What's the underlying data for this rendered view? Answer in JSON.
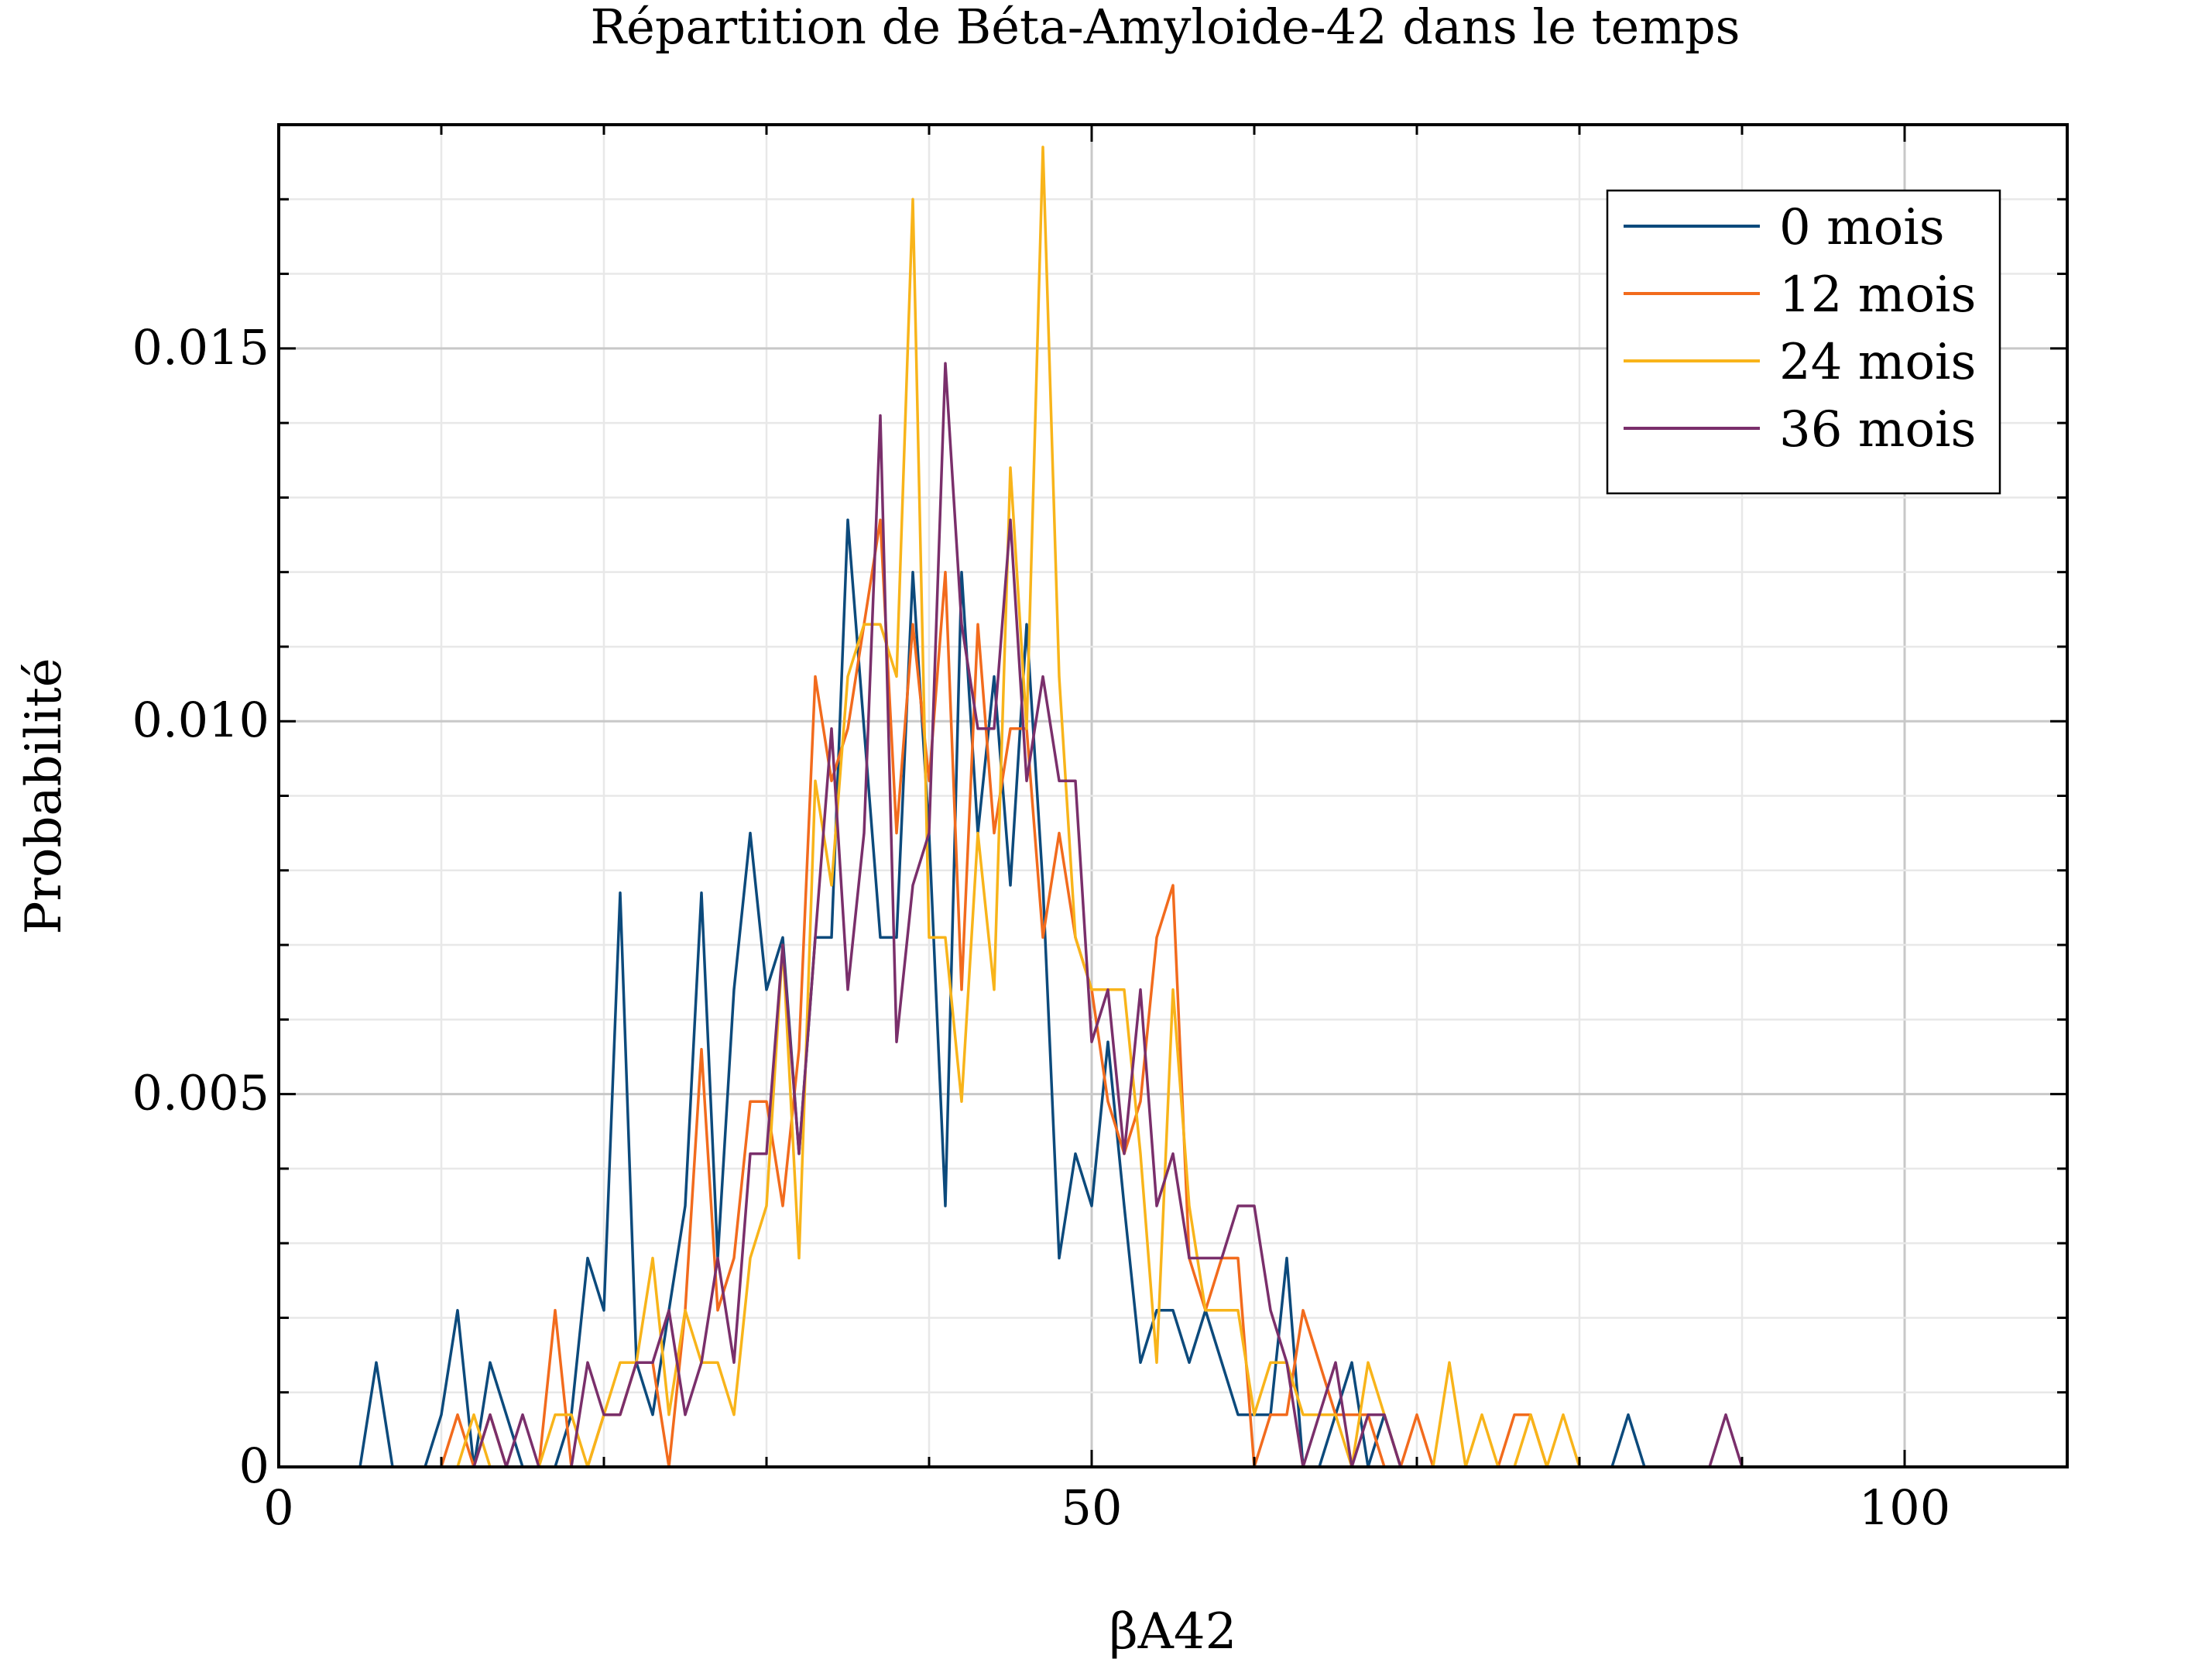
{
  "chart_data": {
    "type": "line",
    "title": "Répartition de Béta-Amyloide-42 dans le temps",
    "xlabel": "βA42",
    "ylabel": "Probabilité",
    "xlim": [
      0,
      110
    ],
    "ylim": [
      0,
      0.018
    ],
    "x_ticks": [
      0,
      50,
      100
    ],
    "x_tick_labels": [
      "0",
      "50",
      "100"
    ],
    "y_ticks": [
      0,
      0.005,
      0.01,
      0.015
    ],
    "y_tick_labels": [
      "0",
      "0.005",
      "0.010",
      "0.015"
    ],
    "grid": true,
    "legend": "top-right",
    "x": [
      1,
      2,
      3,
      4,
      5,
      6,
      7,
      8,
      9,
      10,
      11,
      12,
      13,
      14,
      15,
      16,
      17,
      18,
      19,
      20,
      21,
      22,
      23,
      24,
      25,
      26,
      27,
      28,
      29,
      30,
      31,
      32,
      33,
      34,
      35,
      36,
      37,
      38,
      39,
      40,
      41,
      42,
      43,
      44,
      45,
      46,
      47,
      48,
      49,
      50,
      51,
      52,
      53,
      54,
      55,
      56,
      57,
      58,
      59,
      60,
      61,
      62,
      63,
      64,
      65,
      66,
      67,
      68,
      69,
      70,
      71,
      72,
      73,
      74,
      75,
      76,
      77,
      78,
      79,
      80,
      81,
      82,
      83,
      84,
      85,
      86,
      87,
      88,
      89,
      90,
      91,
      92,
      93,
      94,
      95,
      96,
      97,
      98,
      99,
      100,
      101,
      102,
      103
    ],
    "series": [
      {
        "name": "0 mois",
        "color": "#0C4A7C",
        "values": [
          0,
          0,
          0,
          0,
          0,
          0.0014,
          0,
          0,
          0,
          0.0007,
          0.0021,
          0,
          0.0014,
          0.0007,
          0,
          0,
          0,
          0.0007,
          0.0028,
          0.0021,
          0.0077,
          0.0014,
          0.0007,
          0.0021,
          0.0035,
          0.0077,
          0.0028,
          0.0064,
          0.0085,
          0.0064,
          0.0071,
          0.0042,
          0.0071,
          0.0071,
          0.0127,
          0.0099,
          0.0071,
          0.0071,
          0.012,
          0.0085,
          0.0035,
          0.012,
          0.0085,
          0.0106,
          0.0078,
          0.0113,
          0.0078,
          0.0028,
          0.0042,
          0.0035,
          0.0057,
          0.0035,
          0.0014,
          0.0021,
          0.0021,
          0.0014,
          0.0021,
          0.0014,
          0.0007,
          0.0007,
          0.0007,
          0.0028,
          0,
          0,
          0.0007,
          0.0014,
          0,
          0.0007,
          0,
          0,
          0,
          0,
          0,
          0,
          0,
          0,
          0,
          0,
          0,
          0,
          0,
          0,
          0.0007,
          0,
          0,
          0,
          0,
          0,
          0,
          0,
          0,
          0,
          0,
          0,
          0,
          0,
          0,
          0,
          0,
          0,
          0,
          0,
          0
        ]
      },
      {
        "name": "12 mois",
        "color": "#F26B1D",
        "values": [
          0,
          0,
          0,
          0,
          0,
          0,
          0,
          0,
          0,
          0,
          0.0007,
          0,
          0.0007,
          0,
          0,
          0,
          0.0021,
          0,
          0,
          0.0007,
          0.0007,
          0.0014,
          0.0014,
          0,
          0.0021,
          0.0056,
          0.0021,
          0.0028,
          0.0049,
          0.0049,
          0.0035,
          0.0056,
          0.0106,
          0.0092,
          0.0099,
          0.0113,
          0.0127,
          0.0085,
          0.0113,
          0.0092,
          0.012,
          0.0064,
          0.0113,
          0.0085,
          0.0099,
          0.0099,
          0.0071,
          0.0085,
          0.0071,
          0.0064,
          0.0049,
          0.0042,
          0.0049,
          0.0071,
          0.0078,
          0.0028,
          0.0021,
          0.0028,
          0.0028,
          0,
          0.0007,
          0.0007,
          0.0021,
          0.0014,
          0.0007,
          0.0007,
          0.0007,
          0,
          0,
          0.0007,
          0,
          0,
          0,
          0,
          0,
          0.0007,
          0.0007,
          0,
          0,
          0,
          0,
          0,
          0,
          0,
          0,
          0,
          0,
          0,
          0,
          0,
          0,
          0,
          0,
          0,
          0,
          0,
          0,
          0,
          0,
          0,
          0,
          0,
          0
        ]
      },
      {
        "name": "24 mois",
        "color": "#F8B41A",
        "values": [
          0,
          0,
          0,
          0,
          0,
          0,
          0,
          0,
          0,
          0,
          0,
          0.0007,
          0,
          0,
          0,
          0,
          0.0007,
          0.0007,
          0,
          0.0007,
          0.0014,
          0.0014,
          0.0028,
          0.0007,
          0.0021,
          0.0014,
          0.0014,
          0.0007,
          0.0028,
          0.0035,
          0.007,
          0.0028,
          0.0092,
          0.0078,
          0.0106,
          0.0113,
          0.0113,
          0.0106,
          0.017,
          0.0071,
          0.0071,
          0.0049,
          0.0085,
          0.0064,
          0.0134,
          0.0099,
          0.0177,
          0.0106,
          0.0071,
          0.0064,
          0.0064,
          0.0064,
          0.0042,
          0.0014,
          0.0064,
          0.0035,
          0.0021,
          0.0021,
          0.0021,
          0.0007,
          0.0014,
          0.0014,
          0.0007,
          0.0007,
          0.0007,
          0,
          0.0014,
          0.0007,
          0,
          0,
          0,
          0.0014,
          0,
          0.0007,
          0,
          0,
          0.0007,
          0,
          0.0007,
          0,
          0,
          0,
          0,
          0,
          0,
          0,
          0,
          0,
          0,
          0,
          0,
          0,
          0,
          0,
          0,
          0,
          0,
          0,
          0,
          0,
          0,
          0,
          0
        ]
      },
      {
        "name": "36 mois",
        "color": "#7A2F6B",
        "values": [
          0,
          0,
          0,
          0,
          0,
          0,
          0,
          0,
          0,
          0,
          0,
          0,
          0.0007,
          0,
          0.0007,
          0,
          0,
          0,
          0.0014,
          0.0007,
          0.0007,
          0.0014,
          0.0014,
          0.0021,
          0.0007,
          0.0014,
          0.0028,
          0.0014,
          0.0042,
          0.0042,
          0.007,
          0.0042,
          0.0071,
          0.0099,
          0.0064,
          0.0085,
          0.0141,
          0.0057,
          0.0078,
          0.0085,
          0.0148,
          0.0113,
          0.0099,
          0.0099,
          0.0127,
          0.0092,
          0.0106,
          0.0092,
          0.0092,
          0.0057,
          0.0064,
          0.0042,
          0.0064,
          0.0035,
          0.0042,
          0.0028,
          0.0028,
          0.0028,
          0.0035,
          0.0035,
          0.0021,
          0.0014,
          0,
          0.0007,
          0.0014,
          0,
          0.0007,
          0.0007,
          0,
          0,
          0,
          0,
          0,
          0,
          0,
          0,
          0,
          0,
          0,
          0,
          0,
          0,
          0,
          0,
          0,
          0,
          0,
          0,
          0.0007,
          0,
          0,
          0,
          0,
          0,
          0,
          0,
          0,
          0,
          0,
          0,
          0,
          0,
          0
        ]
      }
    ]
  }
}
